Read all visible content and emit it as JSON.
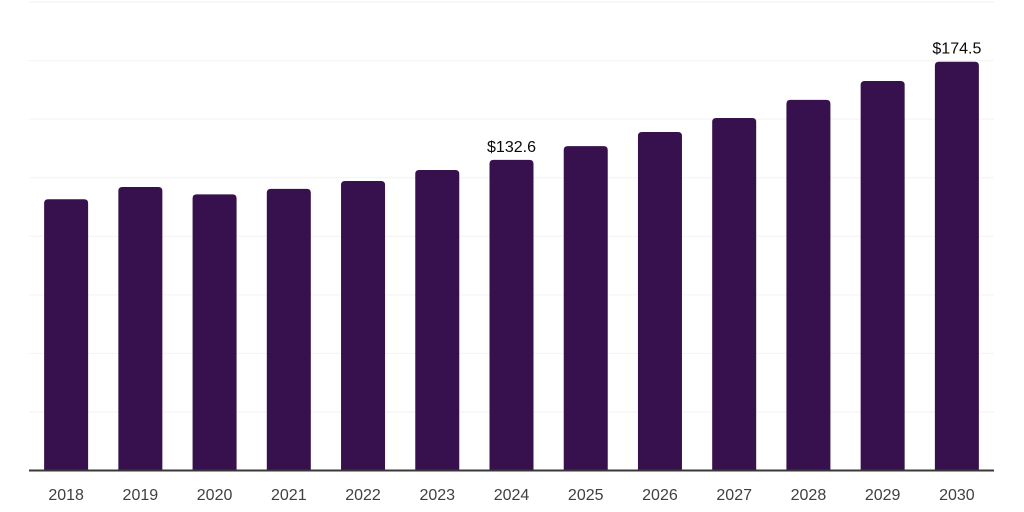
{
  "chart_data": {
    "type": "bar",
    "title": "",
    "xlabel": "",
    "ylabel": "",
    "categories": [
      "2018",
      "2019",
      "2020",
      "2021",
      "2022",
      "2023",
      "2024",
      "2025",
      "2026",
      "2027",
      "2028",
      "2029",
      "2030"
    ],
    "values": [
      115.8,
      121.0,
      117.9,
      120.2,
      123.6,
      128.3,
      132.6,
      138.5,
      144.5,
      150.5,
      158.2,
      166.3,
      174.5
    ],
    "data_labels": [
      null,
      null,
      null,
      null,
      null,
      null,
      "$132.6",
      null,
      null,
      null,
      null,
      null,
      "$174.5"
    ],
    "ylim": [
      0,
      200
    ],
    "gridline_interval": 25,
    "grid": "horizontal",
    "legend": "none",
    "y_axis_labels_visible": false,
    "value_prefix": "$"
  },
  "colors": {
    "bar": "#36114D",
    "gridline": "#f2f2f2",
    "axis_line": "#383838",
    "tick_label": "#404040",
    "data_label": "#0a0a0a",
    "background": "#ffffff"
  }
}
